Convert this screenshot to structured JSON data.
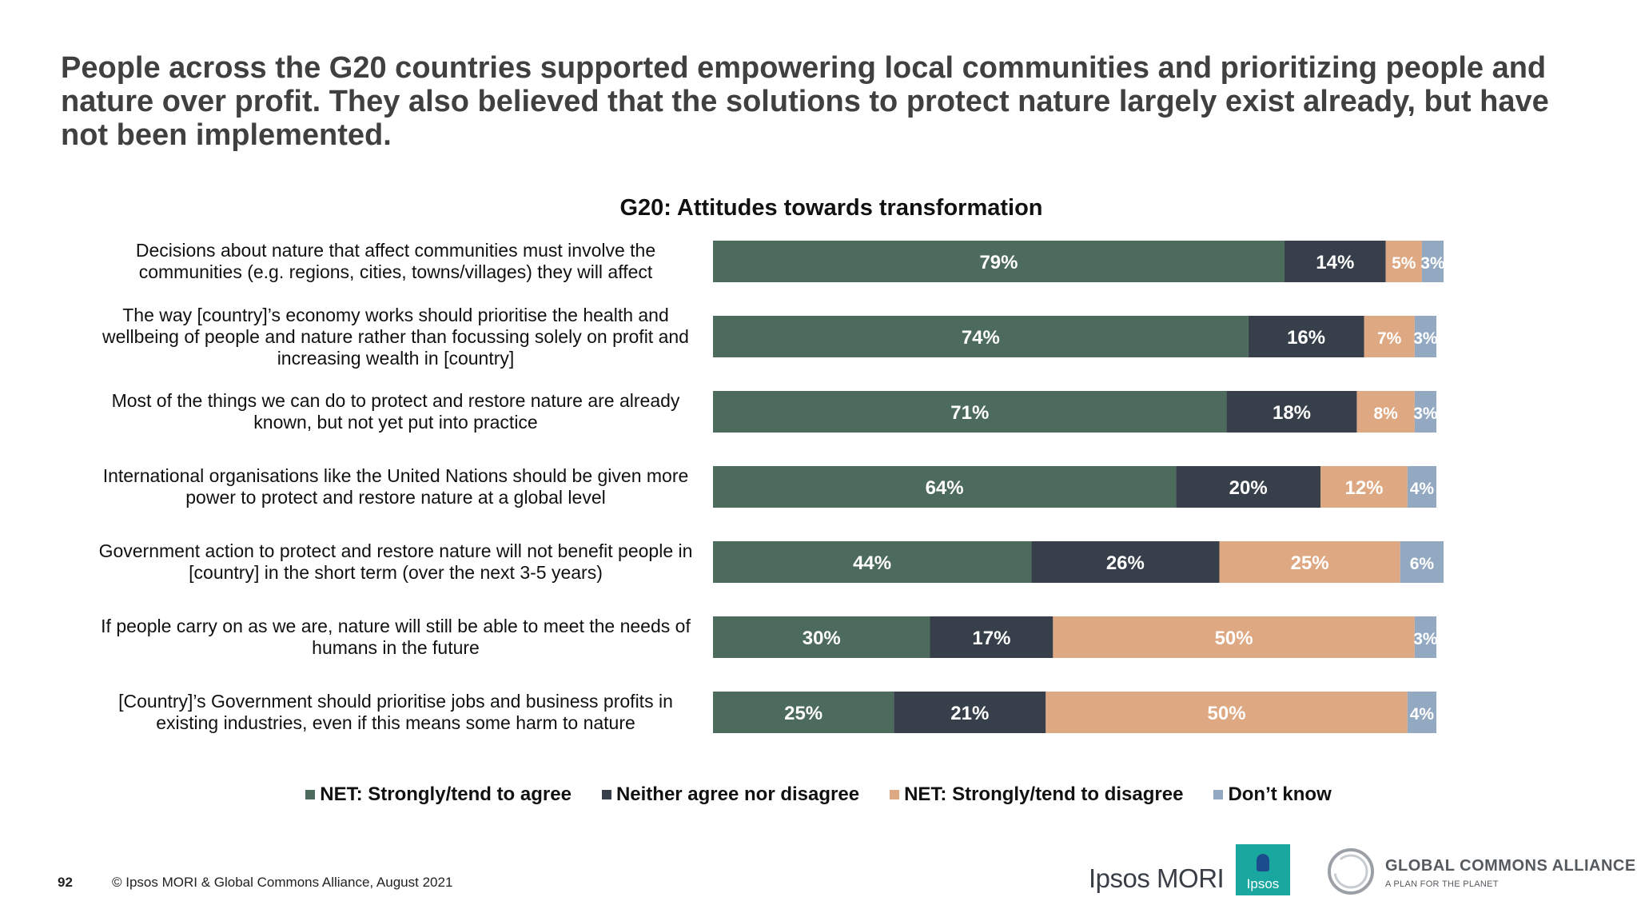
{
  "headline": "People across the G20 countries supported empowering local communities and prioritizing people and nature over profit. They also believed that the solutions to protect nature largely exist already, but have not been implemented.",
  "chart_data": {
    "type": "bar",
    "orientation": "horizontal",
    "stacked": true,
    "title": "G20: Attitudes towards transformation",
    "categories": [
      "Decisions about nature that affect communities must involve the communities (e.g. regions, cities, towns/villages) they will affect",
      "The way [country]’s economy works should prioritise the health and wellbeing of people and nature rather than focussing solely on profit and increasing wealth in [country]",
      "Most of the things we can do to protect and restore nature are already known, but not yet put into practice",
      "International organisations like the United Nations should be given more power to protect and restore nature at a global level",
      "Government action to protect and restore nature will not benefit people in [country] in the short term (over the next 3-5 years)",
      "If people carry on as we are, nature will still be able to meet the needs of humans in the future",
      "[Country]’s Government should prioritise jobs and business profits in existing industries, even if this means some harm to nature"
    ],
    "series": [
      {
        "name": "NET: Strongly/tend to agree",
        "color": "#4d6b5c",
        "values": [
          79,
          74,
          71,
          64,
          44,
          30,
          25
        ]
      },
      {
        "name": "Neither agree nor disagree",
        "color": "#363f4a",
        "values": [
          14,
          16,
          18,
          20,
          26,
          17,
          21
        ]
      },
      {
        "name": "NET: Strongly/tend to disagree",
        "color": "#dda882",
        "values": [
          5,
          7,
          8,
          12,
          25,
          50,
          50
        ]
      },
      {
        "name": "Don’t know",
        "color": "#93a9c1",
        "values": [
          3,
          3,
          3,
          4,
          6,
          3,
          4
        ]
      }
    ],
    "value_suffix": "%",
    "legend_position": "bottom"
  },
  "footer": {
    "page_number": "92",
    "copyright": "© Ipsos MORI & Global Commons Alliance, August 2021"
  },
  "logos": {
    "ipsos_mori": "Ipsos MORI",
    "ipsos": "Ipsos",
    "gca_name": "GLOBAL COMMONS ALLIANCE",
    "gca_tagline": "A PLAN FOR THE PLANET"
  }
}
